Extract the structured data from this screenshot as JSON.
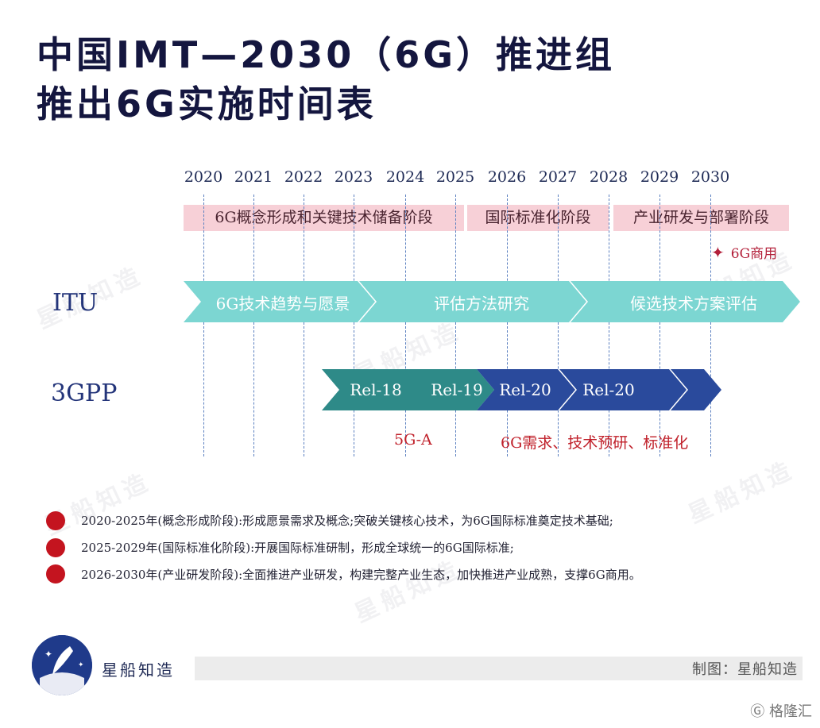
{
  "title": {
    "line1": "中国IMT—2030（6G）推进组",
    "line2": "推出6G实施时间表"
  },
  "years": [
    "2020",
    "2021",
    "2022",
    "2023",
    "2024",
    "2025",
    "2026",
    "2027",
    "2028",
    "2029",
    "2030"
  ],
  "phases": [
    {
      "label": "6G概念形成和关键技术储备阶段"
    },
    {
      "label": "国际标准化阶段"
    },
    {
      "label": "产业研发与部署阶段"
    }
  ],
  "commercial_note": "6G商用",
  "rows": {
    "itu_label": "ITU",
    "gpp_label": "3GPP"
  },
  "itu_segments": [
    {
      "label": "6G技术趋势与愿景",
      "color": "#7cd6d2"
    },
    {
      "label": "评估方法研究",
      "color": "#7cd6d2"
    },
    {
      "label": "候选技术方案评估",
      "color": "#7cd6d2"
    }
  ],
  "gpp_segments": [
    {
      "label": "Rel-18",
      "color": "#2e8a88"
    },
    {
      "label": "Rel-19",
      "color": "#2e8a88"
    },
    {
      "label": "Rel-20",
      "color": "#2a4a9c"
    },
    {
      "label": "Rel-20",
      "color": "#2a4a9c"
    },
    {
      "label": "",
      "color": "#2a4a9c"
    },
    {
      "label": "",
      "color": "#2a4a9c"
    }
  ],
  "notes": {
    "five_g_a": "5G-A",
    "six_g": "6G需求、技术预研、标准化"
  },
  "descriptions": [
    "2020-2025年(概念形成阶段):形成愿景需求及概念;突破关键核心技术，为6G国际标准奠定技术基础;",
    "2025-2029年(国际标准化阶段):开展国际标准研制，形成全球统一的6G国际标准;",
    "2026-2030年(产业研发阶段):全面推进产业研发，构建完整产业生态，加快推进产业成熟，支撑6G商用。"
  ],
  "brand": "星船知造",
  "credit": "制图：星船知造",
  "corner_mark": "格隆汇",
  "watermark": "星船知造",
  "colors": {
    "title": "#14163f",
    "phase_bg": "#f6c8d0",
    "itu_arrow": "#7cd6d2",
    "gpp_teal": "#2e8a88",
    "gpp_blue": "#2a4a9c",
    "accent_red": "#c4141f"
  }
}
